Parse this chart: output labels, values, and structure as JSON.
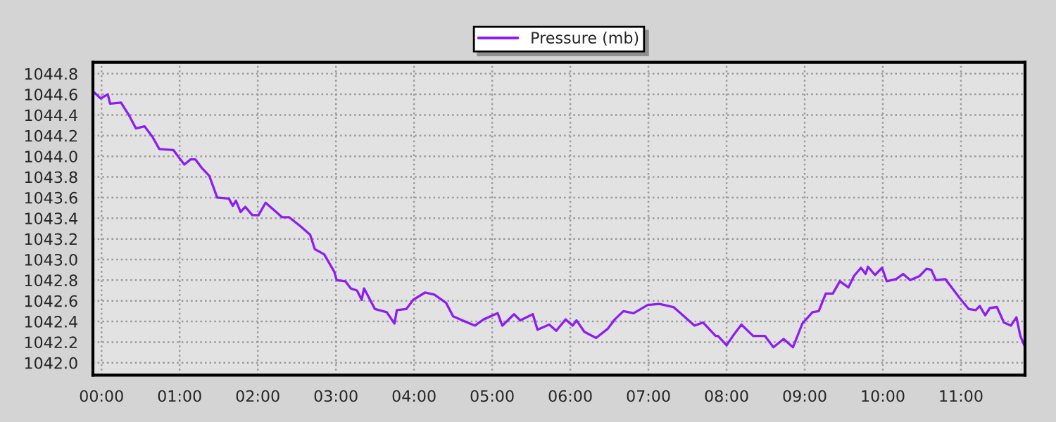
{
  "chart_data": {
    "type": "line",
    "x": [
      -0.11,
      -0.01,
      0.08,
      0.11,
      0.25,
      0.29,
      0.35,
      0.44,
      0.55,
      0.65,
      0.74,
      0.92,
      1.06,
      1.14,
      1.2,
      1.28,
      1.38,
      1.48,
      1.63,
      1.68,
      1.72,
      1.78,
      1.84,
      1.93,
      2.01,
      2.1,
      2.19,
      2.31,
      2.4,
      2.55,
      2.67,
      2.73,
      2.85,
      2.98,
      3.01,
      3.12,
      3.19,
      3.27,
      3.33,
      3.36,
      3.5,
      3.65,
      3.75,
      3.78,
      3.9,
      3.99,
      4.14,
      4.26,
      4.41,
      4.5,
      4.62,
      4.78,
      4.89,
      5.07,
      5.13,
      5.28,
      5.36,
      5.52,
      5.58,
      5.73,
      5.82,
      5.94,
      6.03,
      6.08,
      6.18,
      6.33,
      6.48,
      6.57,
      6.68,
      6.81,
      6.99,
      7.14,
      7.32,
      7.41,
      7.59,
      7.7,
      7.86,
      7.89,
      8.0,
      8.1,
      8.19,
      8.34,
      8.49,
      8.6,
      8.73,
      8.85,
      8.97,
      9.1,
      9.18,
      9.27,
      9.36,
      9.45,
      9.56,
      9.63,
      9.72,
      9.78,
      9.81,
      9.9,
      9.99,
      10.05,
      10.17,
      10.26,
      10.35,
      10.47,
      10.56,
      10.62,
      10.68,
      10.8,
      10.89,
      10.98,
      11.1,
      11.19,
      11.24,
      11.31,
      11.37,
      11.46,
      11.55,
      11.64,
      11.71,
      11.76,
      11.81
    ],
    "series": [
      {
        "name": "Pressure (mb)",
        "color": "#8c1ef2",
        "values": [
          1044.63,
          1044.56,
          1044.6,
          1044.51,
          1044.52,
          1044.47,
          1044.4,
          1044.27,
          1044.29,
          1044.19,
          1044.07,
          1044.06,
          1043.92,
          1043.97,
          1043.97,
          1043.89,
          1043.81,
          1043.6,
          1043.59,
          1043.52,
          1043.57,
          1043.46,
          1043.51,
          1043.43,
          1043.43,
          1043.55,
          1043.49,
          1043.41,
          1043.41,
          1043.32,
          1043.24,
          1043.1,
          1043.05,
          1042.88,
          1042.8,
          1042.79,
          1042.72,
          1042.7,
          1042.61,
          1042.72,
          1042.52,
          1042.49,
          1042.38,
          1042.51,
          1042.52,
          1042.61,
          1042.68,
          1042.66,
          1042.58,
          1042.45,
          1042.41,
          1042.36,
          1042.42,
          1042.48,
          1042.36,
          1042.47,
          1042.41,
          1042.47,
          1042.32,
          1042.37,
          1042.31,
          1042.42,
          1042.36,
          1042.41,
          1042.3,
          1042.24,
          1042.33,
          1042.42,
          1042.5,
          1042.48,
          1042.56,
          1042.57,
          1042.54,
          1042.48,
          1042.36,
          1042.39,
          1042.26,
          1042.26,
          1042.17,
          1042.28,
          1042.37,
          1042.26,
          1042.26,
          1042.15,
          1042.23,
          1042.15,
          1042.38,
          1042.49,
          1042.5,
          1042.67,
          1042.67,
          1042.79,
          1042.73,
          1042.84,
          1042.92,
          1042.86,
          1042.93,
          1042.85,
          1042.92,
          1042.79,
          1042.81,
          1042.86,
          1042.8,
          1042.84,
          1042.91,
          1042.9,
          1042.8,
          1042.81,
          1042.72,
          1042.63,
          1042.52,
          1042.51,
          1042.55,
          1042.46,
          1042.53,
          1042.54,
          1042.39,
          1042.36,
          1042.44,
          1042.26,
          1042.17
        ]
      }
    ],
    "xlim": [
      -0.11,
      11.82
    ],
    "ylim": [
      1041.88,
      1044.91
    ],
    "xticks": [
      {
        "value": 0,
        "label": "00:00"
      },
      {
        "value": 1,
        "label": "01:00"
      },
      {
        "value": 2,
        "label": "02:00"
      },
      {
        "value": 3,
        "label": "03:00"
      },
      {
        "value": 4,
        "label": "04:00"
      },
      {
        "value": 5,
        "label": "05:00"
      },
      {
        "value": 6,
        "label": "06:00"
      },
      {
        "value": 7,
        "label": "07:00"
      },
      {
        "value": 8,
        "label": "08:00"
      },
      {
        "value": 9,
        "label": "09:00"
      },
      {
        "value": 10,
        "label": "10:00"
      },
      {
        "value": 11,
        "label": "11:00"
      }
    ],
    "yticks": [
      {
        "value": 1042.0,
        "label": "1042.0"
      },
      {
        "value": 1042.2,
        "label": "1042.2"
      },
      {
        "value": 1042.4,
        "label": "1042.4"
      },
      {
        "value": 1042.6,
        "label": "1042.6"
      },
      {
        "value": 1042.8,
        "label": "1042.8"
      },
      {
        "value": 1043.0,
        "label": "1043.0"
      },
      {
        "value": 1043.2,
        "label": "1043.2"
      },
      {
        "value": 1043.4,
        "label": "1043.4"
      },
      {
        "value": 1043.6,
        "label": "1043.6"
      },
      {
        "value": 1043.8,
        "label": "1043.8"
      },
      {
        "value": 1044.0,
        "label": "1044.0"
      },
      {
        "value": 1044.2,
        "label": "1044.2"
      },
      {
        "value": 1044.4,
        "label": "1044.4"
      },
      {
        "value": 1044.6,
        "label": "1044.6"
      },
      {
        "value": 1044.8,
        "label": "1044.8"
      }
    ],
    "grid": true,
    "legend": "top",
    "line_style": "solid",
    "marker": "none"
  }
}
